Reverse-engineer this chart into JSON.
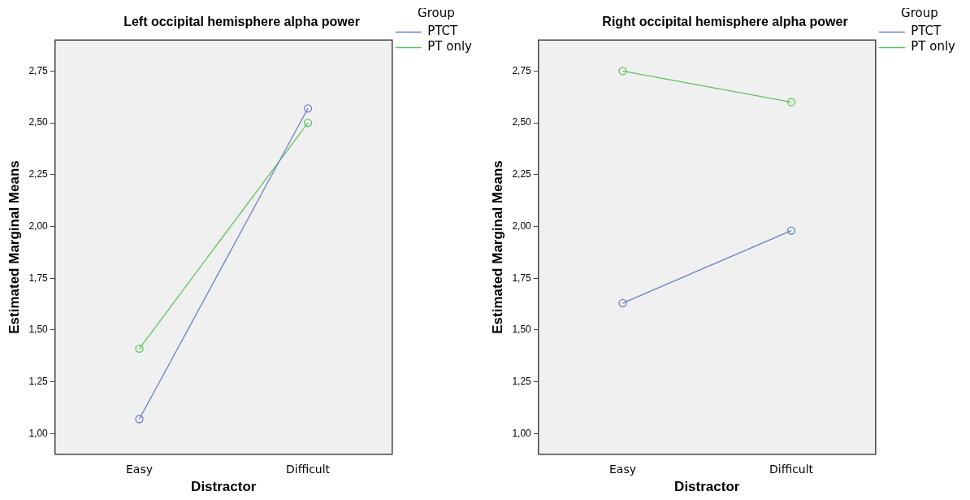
{
  "chart_data": [
    {
      "type": "line",
      "title": "Left occipital hemisphere alpha power",
      "xlabel": "Distractor",
      "ylabel": "Estimated Marginal Means",
      "legend_title": "Group",
      "legend": "right",
      "marker": "circle",
      "grid": false,
      "categories": [
        "Easy",
        "Difficult"
      ],
      "series": [
        {
          "name": "PTCT",
          "color": "#6e7fc8",
          "values": [
            1.07,
            2.57
          ]
        },
        {
          "name": "PT only",
          "color": "#5cc45c",
          "values": [
            1.41,
            2.5
          ]
        }
      ],
      "ylim": [
        0.9,
        2.9
      ],
      "yticks": [
        {
          "value": 1,
          "label": "1,00"
        },
        {
          "value": 1.25,
          "label": "1,25"
        },
        {
          "value": 1.5,
          "label": "1,50"
        },
        {
          "value": 1.75,
          "label": "1,75"
        },
        {
          "value": 2,
          "label": "2,00"
        },
        {
          "value": 2.25,
          "label": "2,25"
        },
        {
          "value": 2.5,
          "label": "2,50"
        },
        {
          "value": 2.75,
          "label": "2,75"
        }
      ]
    },
    {
      "type": "line",
      "title": "Right occipital hemisphere alpha power",
      "xlabel": "Distractor",
      "ylabel": "Estimated Marginal Means",
      "legend_title": "Group",
      "legend": "right",
      "marker": "circle",
      "grid": false,
      "categories": [
        "Easy",
        "Difficult"
      ],
      "series": [
        {
          "name": "PTCT",
          "color": "#6e7fc8",
          "values": [
            1.63,
            1.98
          ]
        },
        {
          "name": "PT only",
          "color": "#5cc45c",
          "values": [
            2.75,
            2.6
          ]
        }
      ],
      "ylim": [
        0.9,
        2.9
      ],
      "yticks": [
        {
          "value": 1,
          "label": "1,00"
        },
        {
          "value": 1.25,
          "label": "1,25"
        },
        {
          "value": 1.5,
          "label": "1,50"
        },
        {
          "value": 1.75,
          "label": "1,75"
        },
        {
          "value": 2,
          "label": "2,00"
        },
        {
          "value": 2.25,
          "label": "2,25"
        },
        {
          "value": 2.5,
          "label": "2,50"
        },
        {
          "value": 2.75,
          "label": "2,75"
        }
      ]
    }
  ]
}
